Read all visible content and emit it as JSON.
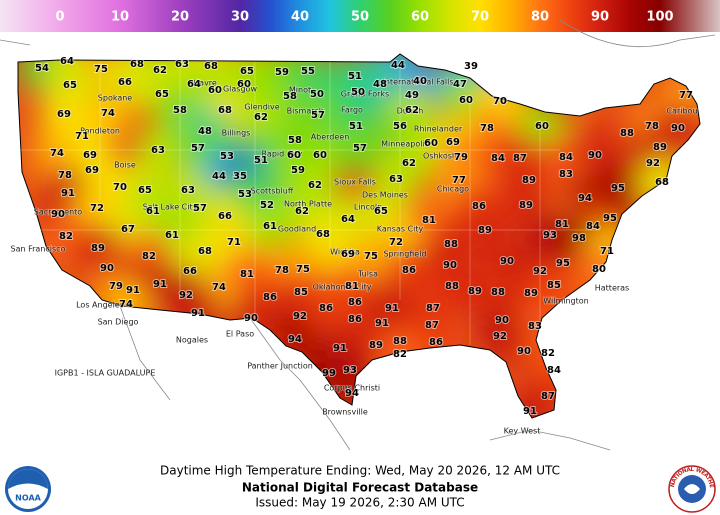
{
  "legend": {
    "ticks": [
      0,
      10,
      20,
      30,
      40,
      50,
      60,
      70,
      80,
      90,
      100
    ]
  },
  "map": {
    "temperatures": [
      54,
      64,
      75,
      68,
      62,
      63,
      68,
      65,
      59,
      55,
      51,
      44,
      39,
      65,
      66,
      64,
      60,
      60,
      58,
      50,
      50,
      48,
      49,
      40,
      47,
      60,
      70,
      74,
      69,
      71,
      65,
      58,
      68,
      62,
      57,
      51,
      56,
      62,
      78,
      60,
      77,
      74,
      69,
      63,
      48,
      57,
      53,
      51,
      60,
      60,
      58,
      57,
      60,
      69,
      62,
      79,
      84,
      87,
      84,
      90,
      88,
      78,
      90,
      89,
      92,
      78,
      69,
      70,
      65,
      44,
      35,
      53,
      59,
      62,
      63,
      77,
      89,
      83,
      95,
      68,
      91,
      90,
      72,
      61,
      57,
      63,
      66,
      52,
      62,
      64,
      65,
      81,
      86,
      89,
      94,
      95,
      81,
      84,
      82,
      67,
      61,
      71,
      61,
      68,
      72,
      88,
      89,
      93,
      98,
      71,
      89,
      68,
      82,
      90,
      66,
      78,
      75,
      69,
      75,
      86,
      90,
      90,
      95,
      92,
      80,
      79,
      91,
      91,
      74,
      81,
      81,
      88,
      89,
      88,
      89,
      85,
      74,
      92,
      86,
      85,
      86,
      91,
      87,
      90,
      83,
      91,
      90,
      92,
      86,
      86,
      91,
      87,
      92,
      94,
      91,
      89,
      88,
      86,
      82,
      90,
      82,
      99,
      93,
      84,
      87,
      94,
      91
    ],
    "places": [
      "Havre",
      "Glasgow",
      "Minot",
      "Grand Forks",
      "International Falls",
      "Spokane",
      "Glendive",
      "Bismarck",
      "Fargo",
      "Duluth",
      "Rhinelander",
      "Pendleton",
      "Billings",
      "Aberdeen",
      "Minneapolis",
      "Boise",
      "Rapid City",
      "Sioux Falls",
      "Oshkosh",
      "Salt Lake City",
      "Scottsbluff",
      "North Platte",
      "Des Moines",
      "Chicago",
      "Lincoln",
      "Sacramento",
      "San Francisco",
      "Los Angeles",
      "San Diego",
      "Kansas City",
      "Goodland",
      "Wichita",
      "Springfield",
      "Tulsa",
      "Oklahoma City",
      "Corpus Christi",
      "Brownsville",
      "Hatteras",
      "Wilmington",
      "Nogales",
      "El Paso",
      "Panther Junction",
      "Key West",
      "Caribou",
      "IGPB1 - ISLA GUADALUPE"
    ]
  },
  "footer": {
    "title": "Daytime High Temperature Ending: Wed, May 20 2026, 12 AM UTC",
    "source": "National Digital Forecast Database",
    "issued": "Issued: May 19 2026, 2:30 AM UTC"
  },
  "logos": {
    "noaa": "NOAA",
    "nws": "NATIONAL WEATHER SERVICE"
  }
}
